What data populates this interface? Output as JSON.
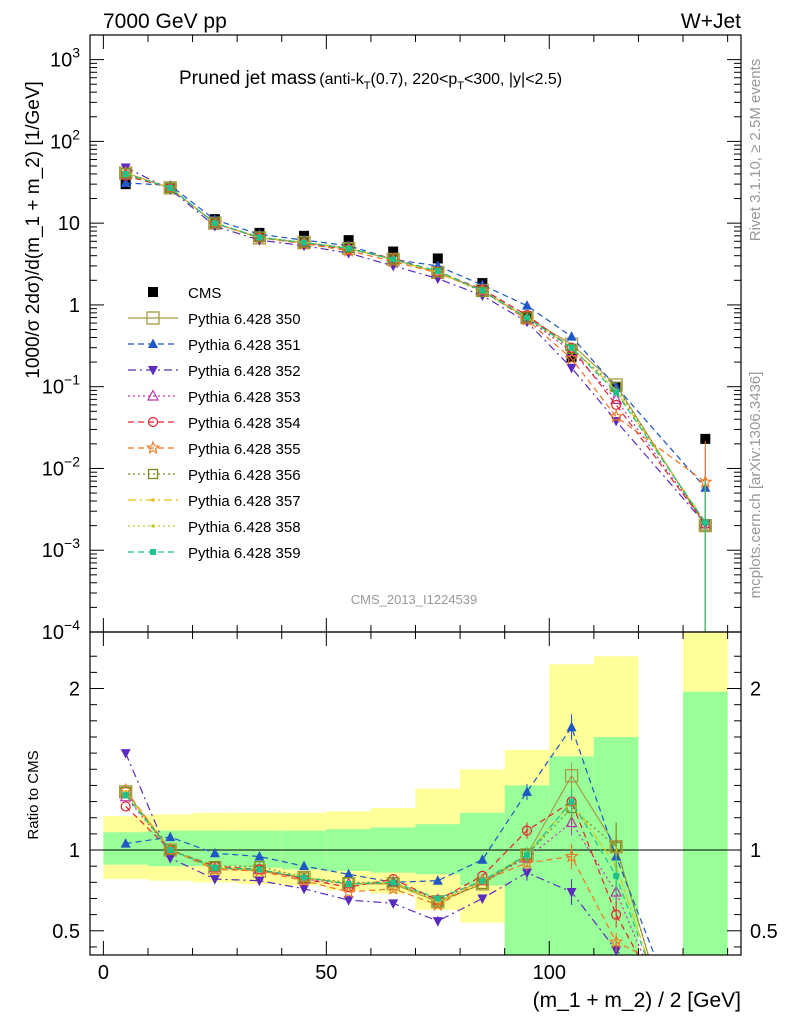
{
  "header": {
    "left": "7000 GeV pp",
    "right": "W+Jet"
  },
  "title": {
    "main": "Pruned jet mass",
    "detail_pre": "(anti-k",
    "detail_sub1": "T",
    "detail_mid": "(0.7), 220<p",
    "detail_sub2": "T",
    "detail_post": "<300, |y|<2.5)"
  },
  "side_labels": {
    "rivet": "Rivet 3.1.10, ≥ 2.5M events",
    "mcplots": "mcplots.cern.ch [arXiv:1306.3436]"
  },
  "watermark": "CMS_2013_I1224539",
  "chart_data": [
    {
      "type": "scatter",
      "panel": "main",
      "ylabel": "1000/σ 2dσ)/d(m_1 + m_2) [1/GeV]",
      "yscale": "log",
      "ylim": [
        0.0001,
        2000
      ],
      "xlim": [
        -3,
        143
      ],
      "yticks": [
        {
          "v": 0.0001,
          "base": "10",
          "exp": "−4"
        },
        {
          "v": 0.001,
          "base": "10",
          "exp": "−3"
        },
        {
          "v": 0.01,
          "base": "10",
          "exp": "−2"
        },
        {
          "v": 0.1,
          "base": "10",
          "exp": "−1"
        },
        {
          "v": 1,
          "base": "1",
          "exp": ""
        },
        {
          "v": 10,
          "base": "10",
          "exp": ""
        },
        {
          "v": 100,
          "base": "10",
          "exp": "2"
        },
        {
          "v": 1000,
          "base": "10",
          "exp": "3"
        }
      ],
      "x": [
        5,
        15,
        25,
        35,
        45,
        55,
        65,
        75,
        85,
        95,
        105,
        115,
        135
      ],
      "series": [
        {
          "name": "CMS",
          "color": "#000000",
          "marker": "square-filled",
          "dash": "none",
          "values": [
            30,
            27,
            11.2,
            7.6,
            7.0,
            6.2,
            4.5,
            3.7,
            1.85,
            0.72,
            0.23,
            0.1,
            0.023
          ]
        },
        {
          "name": "Pythia 6.428 350",
          "color": "#a59b45",
          "marker": "square-open",
          "dash": "solid",
          "big": true,
          "values": [
            41,
            27,
            10.0,
            6.6,
            5.8,
            4.9,
            3.6,
            2.5,
            1.5,
            0.7,
            0.33,
            0.105,
            0.002
          ]
        },
        {
          "name": "Pythia 6.428 351",
          "color": "#1f57c4",
          "marker": "triangle-up",
          "dash": "6,4",
          "values": [
            31,
            29,
            11.0,
            7.3,
            6.2,
            5.3,
            3.6,
            3.0,
            1.75,
            0.98,
            0.41,
            0.1,
            0.0058
          ]
        },
        {
          "name": "Pythia 6.428 352",
          "color": "#5b2bbf",
          "marker": "triangle-down",
          "dash": "8,4,2,4",
          "values": [
            48,
            26,
            9.2,
            6.2,
            5.3,
            4.3,
            3.0,
            2.1,
            1.3,
            0.62,
            0.17,
            0.038,
            0.0021
          ]
        },
        {
          "name": "Pythia 6.428 353",
          "color": "#b837a7",
          "marker": "triangle-open",
          "dash": "2,3",
          "values": [
            40,
            27,
            9.9,
            6.7,
            5.7,
            4.9,
            3.6,
            2.55,
            1.5,
            0.68,
            0.27,
            0.07,
            0.0021
          ]
        },
        {
          "name": "Pythia 6.428 354",
          "color": "#e3232c",
          "marker": "circle-open",
          "dash": "6,4",
          "values": [
            38,
            27,
            10.0,
            6.7,
            5.7,
            4.8,
            3.7,
            2.55,
            1.55,
            0.75,
            0.3,
            0.06,
            0.0021
          ]
        },
        {
          "name": "Pythia 6.428 355",
          "color": "#f07621",
          "marker": "star-open",
          "dash": "6,4",
          "values": [
            41,
            27,
            9.9,
            6.6,
            5.6,
            4.6,
            3.4,
            2.45,
            1.5,
            0.66,
            0.22,
            0.043,
            0.0068
          ]
        },
        {
          "name": "Pythia 6.428 356",
          "color": "#7e8b1c",
          "marker": "square-open",
          "dash": "2,3",
          "values": [
            41,
            27,
            10.0,
            6.8,
            5.8,
            5.0,
            3.6,
            2.5,
            1.45,
            0.7,
            0.29,
            0.1,
            0.002
          ]
        },
        {
          "name": "Pythia 6.428 357",
          "color": "#e8bd14",
          "marker": "dot",
          "dash": "8,4,2,4",
          "values": [
            41,
            27,
            10.0,
            6.7,
            5.8,
            4.9,
            3.6,
            2.5,
            1.5,
            0.7,
            0.3,
            0.09,
            0.0022
          ]
        },
        {
          "name": "Pythia 6.428 358",
          "color": "#c5cc2c",
          "marker": "dot",
          "dash": "2,3",
          "values": [
            40,
            27,
            10.0,
            6.7,
            5.8,
            4.9,
            3.6,
            2.5,
            1.5,
            0.7,
            0.3,
            0.09,
            0.0022
          ]
        },
        {
          "name": "Pythia 6.428 359",
          "color": "#1fc38a",
          "marker": "square-filled-small",
          "dash": "6,4",
          "values": [
            40,
            27,
            10.0,
            6.7,
            5.8,
            4.9,
            3.6,
            2.6,
            1.5,
            0.7,
            0.3,
            0.085,
            0.0022
          ]
        }
      ]
    },
    {
      "type": "scatter",
      "panel": "ratio",
      "ylabel": "Ratio to CMS",
      "xlabel": "(m_1 + m_2) / 2 [GeV]",
      "ylim": [
        0.35,
        2.35
      ],
      "xlim": [
        -3,
        143
      ],
      "xticks": [
        0,
        50,
        100
      ],
      "yticks": [
        0.5,
        1,
        2
      ],
      "x": [
        5,
        15,
        25,
        35,
        45,
        55,
        65,
        75,
        85,
        95,
        105,
        115
      ],
      "bands": [
        {
          "x0": 0,
          "x1": 10,
          "g": [
            0.91,
            1.11
          ],
          "y": [
            0.82,
            1.21
          ]
        },
        {
          "x0": 10,
          "x1": 20,
          "g": [
            0.9,
            1.12
          ],
          "y": [
            0.81,
            1.22
          ]
        },
        {
          "x0": 20,
          "x1": 30,
          "g": [
            0.9,
            1.12
          ],
          "y": [
            0.8,
            1.23
          ]
        },
        {
          "x0": 30,
          "x1": 40,
          "g": [
            0.89,
            1.12
          ],
          "y": [
            0.79,
            1.23
          ]
        },
        {
          "x0": 40,
          "x1": 50,
          "g": [
            0.88,
            1.12
          ],
          "y": [
            0.78,
            1.23
          ]
        },
        {
          "x0": 50,
          "x1": 60,
          "g": [
            0.87,
            1.13
          ],
          "y": [
            0.75,
            1.24
          ]
        },
        {
          "x0": 60,
          "x1": 70,
          "g": [
            0.86,
            1.14
          ],
          "y": [
            0.73,
            1.26
          ]
        },
        {
          "x0": 70,
          "x1": 80,
          "g": [
            0.85,
            1.16
          ],
          "y": [
            0.63,
            1.38
          ]
        },
        {
          "x0": 80,
          "x1": 90,
          "g": [
            0.78,
            1.23
          ],
          "y": [
            0.55,
            1.5
          ]
        },
        {
          "x0": 90,
          "x1": 100,
          "g": [
            0.35,
            1.4
          ],
          "y": [
            0.35,
            1.62
          ]
        },
        {
          "x0": 100,
          "x1": 110,
          "g": [
            0.35,
            1.58
          ],
          "y": [
            0.35,
            2.15
          ]
        },
        {
          "x0": 110,
          "x1": 120,
          "g": [
            0.35,
            1.7
          ],
          "y": [
            0.35,
            2.2
          ]
        },
        {
          "x0": 130,
          "x1": 140,
          "g": [
            0.35,
            1.98
          ],
          "y": [
            0.35,
            2.35
          ]
        }
      ],
      "series": [
        {
          "name": "Pythia 6.428 350",
          "values": [
            1.36,
            1.0,
            0.89,
            0.87,
            0.83,
            0.79,
            0.79,
            0.68,
            0.79,
            0.97,
            1.46,
            1.02
          ],
          "err": [
            0,
            0,
            0,
            0,
            0,
            0,
            0,
            0,
            0,
            0.05,
            0.08,
            0.15
          ],
          "tail": [
            0.09,
            0.35
          ]
        },
        {
          "name": "Pythia 6.428 351",
          "values": [
            1.04,
            1.08,
            0.98,
            0.96,
            0.9,
            0.85,
            0.8,
            0.81,
            0.94,
            1.36,
            1.76,
            0.96
          ],
          "err": [
            0,
            0,
            0,
            0,
            0,
            0,
            0,
            0,
            0,
            0.05,
            0.08,
            0.12
          ],
          "tail": [
            0.25,
            0.35
          ]
        },
        {
          "name": "Pythia 6.428 352",
          "values": [
            1.6,
            0.95,
            0.82,
            0.81,
            0.76,
            0.69,
            0.67,
            0.56,
            0.7,
            0.86,
            0.74,
            0.38
          ],
          "err": [
            0,
            0,
            0,
            0,
            0,
            0,
            0,
            0.03,
            0,
            0.05,
            0.08,
            0.06
          ],
          "tail": [
            0.09,
            0.35
          ]
        },
        {
          "name": "Pythia 6.428 353",
          "values": [
            1.33,
            1.0,
            0.89,
            0.88,
            0.82,
            0.79,
            0.8,
            0.69,
            0.81,
            0.95,
            1.17,
            0.74
          ],
          "err": [
            0,
            0,
            0,
            0,
            0,
            0,
            0,
            0,
            0,
            0.05,
            0.08,
            0.1
          ],
          "tail": [
            0.09,
            0.35
          ]
        },
        {
          "name": "Pythia 6.428 354",
          "values": [
            1.27,
            1.0,
            0.9,
            0.88,
            0.82,
            0.77,
            0.82,
            0.69,
            0.84,
            1.12,
            1.3,
            0.6
          ],
          "err": [
            0,
            0,
            0,
            0,
            0,
            0,
            0,
            0,
            0,
            0.05,
            0.08,
            0.08
          ],
          "tail": [
            0.09,
            0.35
          ]
        },
        {
          "name": "Pythia 6.428 355",
          "values": [
            1.37,
            1.0,
            0.88,
            0.87,
            0.81,
            0.74,
            0.76,
            0.66,
            0.81,
            0.92,
            0.96,
            0.43
          ],
          "err": [
            0,
            0,
            0,
            0,
            0,
            0,
            0,
            0,
            0,
            0.05,
            0.08,
            0.06
          ],
          "tail": [
            0.3,
            0.35
          ]
        },
        {
          "name": "Pythia 6.428 356",
          "values": [
            1.36,
            1.0,
            0.9,
            0.9,
            0.83,
            0.8,
            0.8,
            0.68,
            0.79,
            0.97,
            1.26,
            1.02
          ],
          "err": [
            0,
            0,
            0,
            0,
            0,
            0,
            0,
            0,
            0,
            0.05,
            0.08,
            0.15
          ],
          "tail": [
            0.09,
            0.35
          ]
        },
        {
          "name": "Pythia 6.428 357",
          "values": [
            1.36,
            1.0,
            0.89,
            0.88,
            0.83,
            0.79,
            0.8,
            0.68,
            0.81,
            0.97,
            1.3,
            0.9
          ],
          "err": [
            0,
            0,
            0,
            0,
            0,
            0,
            0,
            0,
            0,
            0.05,
            0.08,
            0.12
          ],
          "tail": [
            0.09,
            0.35
          ]
        },
        {
          "name": "Pythia 6.428 358",
          "values": [
            1.34,
            1.0,
            0.89,
            0.88,
            0.83,
            0.79,
            0.8,
            0.68,
            0.81,
            0.97,
            1.3,
            0.9
          ],
          "err": [
            0,
            0,
            0,
            0,
            0,
            0,
            0,
            0,
            0,
            0.05,
            0.08,
            0.12
          ],
          "tail": [
            0.09,
            0.35
          ]
        },
        {
          "name": "Pythia 6.428 359",
          "values": [
            1.34,
            1.0,
            0.89,
            0.88,
            0.83,
            0.79,
            0.8,
            0.7,
            0.81,
            0.97,
            1.3,
            0.84
          ],
          "err": [
            0,
            0,
            0,
            0,
            0,
            0,
            0,
            0,
            0,
            0.05,
            0.08,
            0.12
          ],
          "tail": [
            0.09,
            0.35
          ]
        }
      ]
    }
  ]
}
